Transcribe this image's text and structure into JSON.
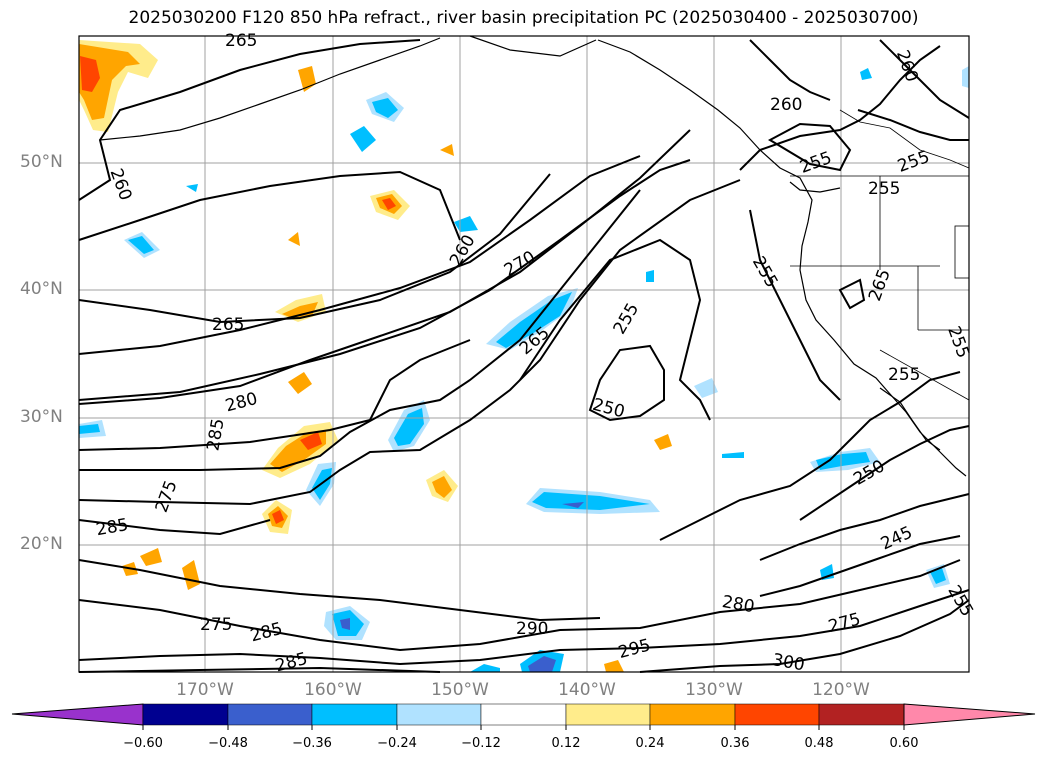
{
  "title": "2025030200 F120 850 hPa refract., river basin precipitation PC (2025030400 - 2025030700)",
  "map": {
    "lat_labels": [
      "50°N",
      "40°N",
      "30°N",
      "20°N"
    ],
    "lon_labels": [
      "170°W",
      "160°W",
      "150°W",
      "140°W",
      "130°W",
      "120°W"
    ],
    "contour_labels": [
      "265",
      "260",
      "260",
      "255",
      "255",
      "255",
      "260",
      "270",
      "255",
      "265",
      "255",
      "265",
      "260",
      "255",
      "280",
      "265",
      "250",
      "255",
      "285",
      "250",
      "275",
      "245",
      "285",
      "280",
      "275",
      "255",
      "275",
      "285",
      "290",
      "295",
      "300",
      "285"
    ],
    "grid": true
  },
  "colorbar": {
    "ticks": [
      "−0.60",
      "−0.48",
      "−0.36",
      "−0.24",
      "−0.12",
      "0.12",
      "0.24",
      "0.36",
      "0.48",
      "0.60"
    ],
    "colors": [
      "#9932cc",
      "#000090",
      "#3a5fcd",
      "#00bfff",
      "#b0e2ff",
      "#ffffff",
      "#ffec8b",
      "#ffa500",
      "#ff4500",
      "#b22222",
      "#ff88aa"
    ]
  }
}
